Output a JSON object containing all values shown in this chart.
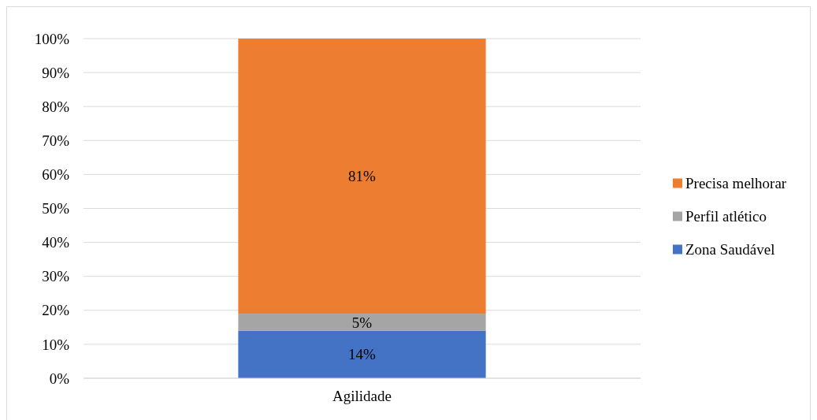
{
  "chart_data": {
    "type": "bar",
    "stacked": true,
    "categories": [
      "Agilidade"
    ],
    "series": [
      {
        "name": "Zona Saudável",
        "color": "#4472c4",
        "values": [
          14
        ],
        "value_labels": [
          "14%"
        ]
      },
      {
        "name": "Perfil atlético",
        "color": "#a5a5a5",
        "values": [
          5
        ],
        "value_labels": [
          "5%"
        ]
      },
      {
        "name": "Precisa melhorar",
        "color": "#ed7d31",
        "values": [
          81
        ],
        "value_labels": [
          "81%"
        ]
      }
    ],
    "ylim": [
      0,
      100
    ],
    "yticks": [
      {
        "value": 0,
        "label": "0%"
      },
      {
        "value": 10,
        "label": "10%"
      },
      {
        "value": 20,
        "label": "20%"
      },
      {
        "value": 30,
        "label": "30%"
      },
      {
        "value": 40,
        "label": "40%"
      },
      {
        "value": 50,
        "label": "50%"
      },
      {
        "value": 60,
        "label": "60%"
      },
      {
        "value": 70,
        "label": "70%"
      },
      {
        "value": 80,
        "label": "80%"
      },
      {
        "value": 90,
        "label": "90%"
      },
      {
        "value": 100,
        "label": "100%"
      }
    ],
    "grid": "y",
    "legend": "right"
  }
}
